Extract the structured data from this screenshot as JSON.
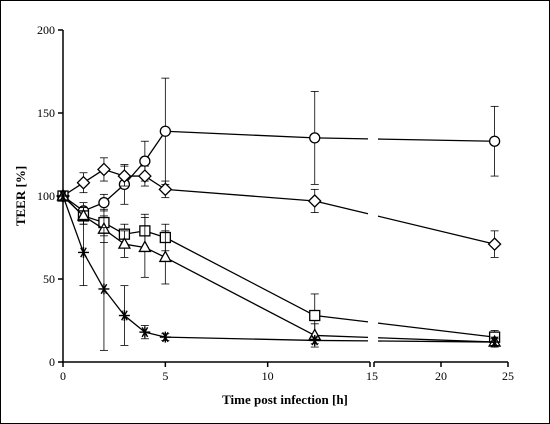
{
  "chart_data": {
    "type": "line",
    "title": "",
    "xlabel": "Time post infection [h]",
    "ylabel": "TEER [%]",
    "ylim": [
      0,
      200
    ],
    "y_ticks": [
      0,
      50,
      100,
      150,
      200
    ],
    "x_axis_broken": true,
    "x_segments": [
      {
        "range": [
          0,
          15
        ],
        "ticks": [
          0,
          5,
          10,
          15
        ]
      },
      {
        "range": [
          15,
          25
        ],
        "ticks": [
          15,
          20,
          25
        ]
      }
    ],
    "grid": false,
    "legend": "none",
    "color": "#000000",
    "series": [
      {
        "marker": "circle",
        "x": [
          0,
          1,
          2,
          3,
          4,
          5,
          12.3,
          24
        ],
        "y": [
          100,
          91,
          96,
          107,
          121,
          139,
          135,
          133
        ],
        "err": [
          3,
          5,
          5,
          12,
          12,
          32,
          28,
          21
        ]
      },
      {
        "marker": "diamond",
        "x": [
          0,
          1,
          2,
          3,
          4,
          5,
          12.3,
          24
        ],
        "y": [
          100,
          108,
          116,
          112,
          112,
          104,
          97,
          71
        ],
        "err": [
          3,
          6,
          7,
          6,
          6,
          5,
          7,
          8
        ]
      },
      {
        "marker": "square",
        "x": [
          0,
          1,
          2,
          3,
          4,
          5,
          12.3,
          24
        ],
        "y": [
          100,
          88,
          84,
          77,
          79,
          75,
          28,
          15
        ],
        "err": [
          3,
          5,
          8,
          6,
          10,
          8,
          13,
          4
        ]
      },
      {
        "marker": "triangle",
        "x": [
          0,
          1,
          2,
          3,
          4,
          5,
          12.3,
          24
        ],
        "y": [
          100,
          88,
          80,
          71,
          69,
          63,
          16,
          12
        ],
        "err": [
          3,
          5,
          8,
          8,
          18,
          16,
          7,
          3
        ]
      },
      {
        "marker": "asterisk",
        "x": [
          0,
          1,
          2,
          3,
          4,
          5,
          12.3,
          24
        ],
        "y": [
          100,
          66,
          44,
          28,
          18,
          15,
          13,
          12
        ],
        "err": [
          3,
          20,
          37,
          18,
          4,
          2,
          2,
          2
        ]
      }
    ]
  }
}
